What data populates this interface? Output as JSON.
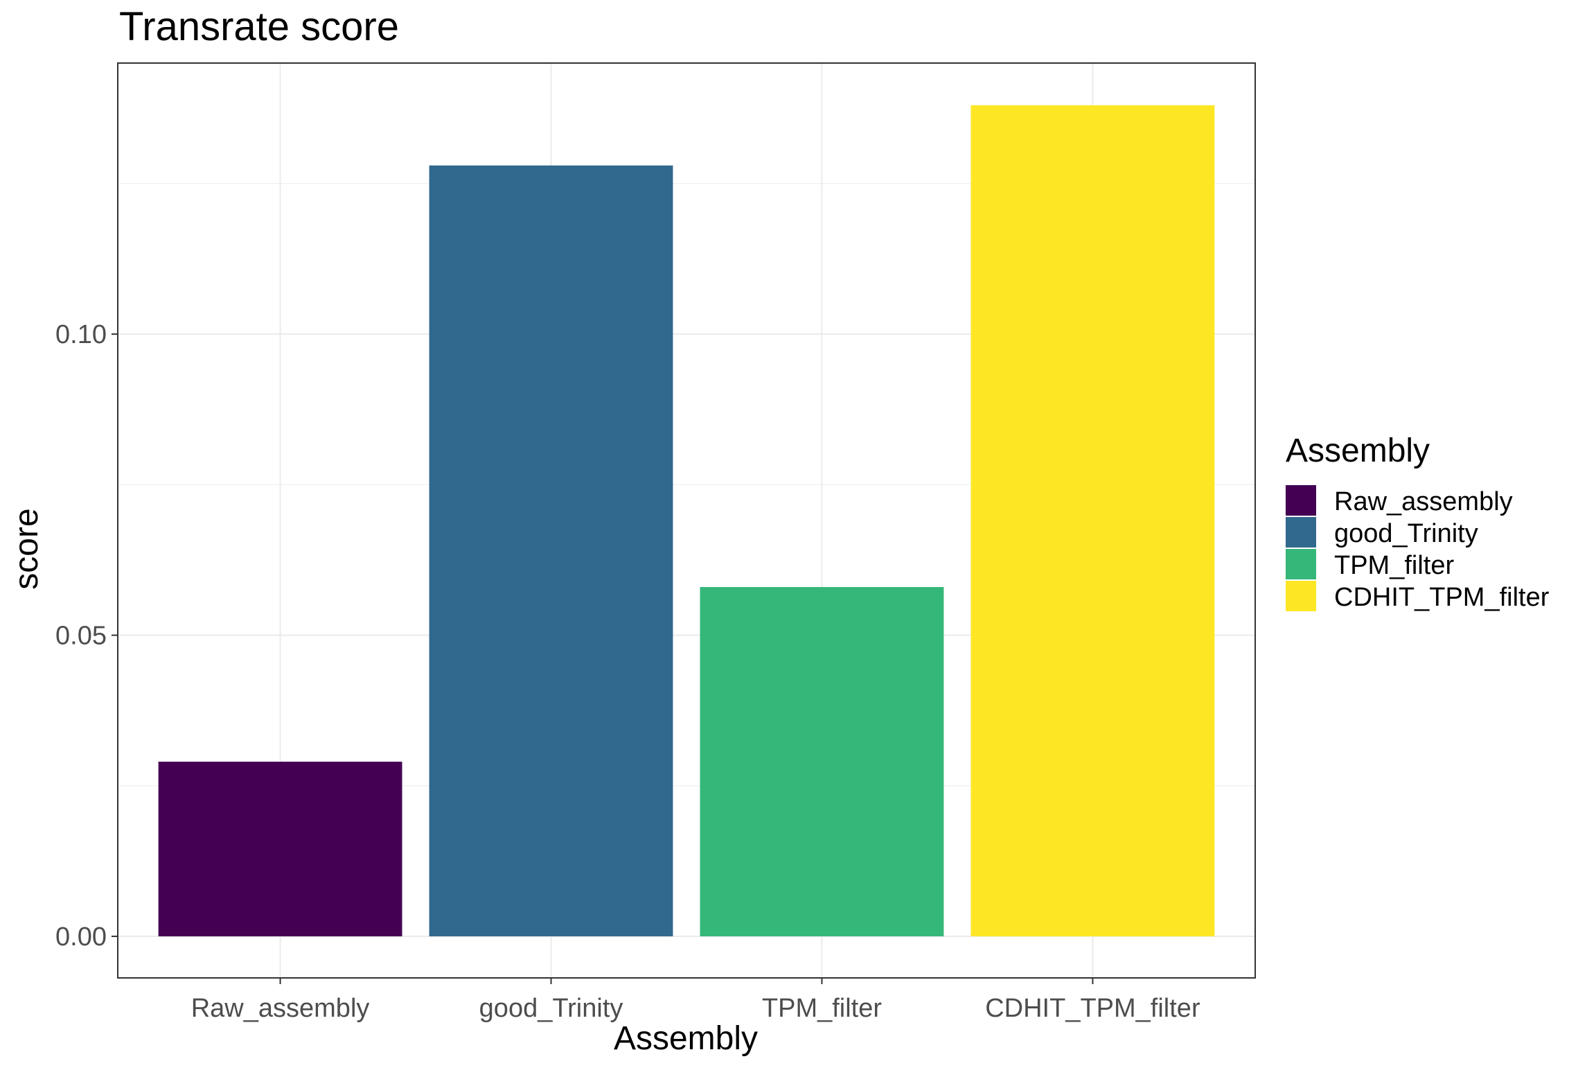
{
  "chart_data": {
    "type": "bar",
    "title": "Transrate score",
    "xlabel": "Assembly",
    "ylabel": "score",
    "categories": [
      "Raw_assembly",
      "good_Trinity",
      "TPM_filter",
      "CDHIT_TPM_filter"
    ],
    "values": [
      0.029,
      0.128,
      0.058,
      0.138
    ],
    "colors": [
      "#440154",
      "#31688E",
      "#35B779",
      "#FDE725"
    ],
    "ylim": [
      -0.0069,
      0.145
    ],
    "yticks": [
      0.0,
      0.05,
      0.1
    ],
    "ytick_labels": [
      "0.00",
      "0.05",
      "0.10"
    ],
    "minor_gridlines": [
      0.025,
      0.075,
      0.125
    ],
    "grid": true,
    "legend": {
      "title": "Assembly",
      "position": "right",
      "labels": [
        "Raw_assembly",
        "good_Trinity",
        "TPM_filter",
        "CDHIT_TPM_filter"
      ]
    }
  }
}
